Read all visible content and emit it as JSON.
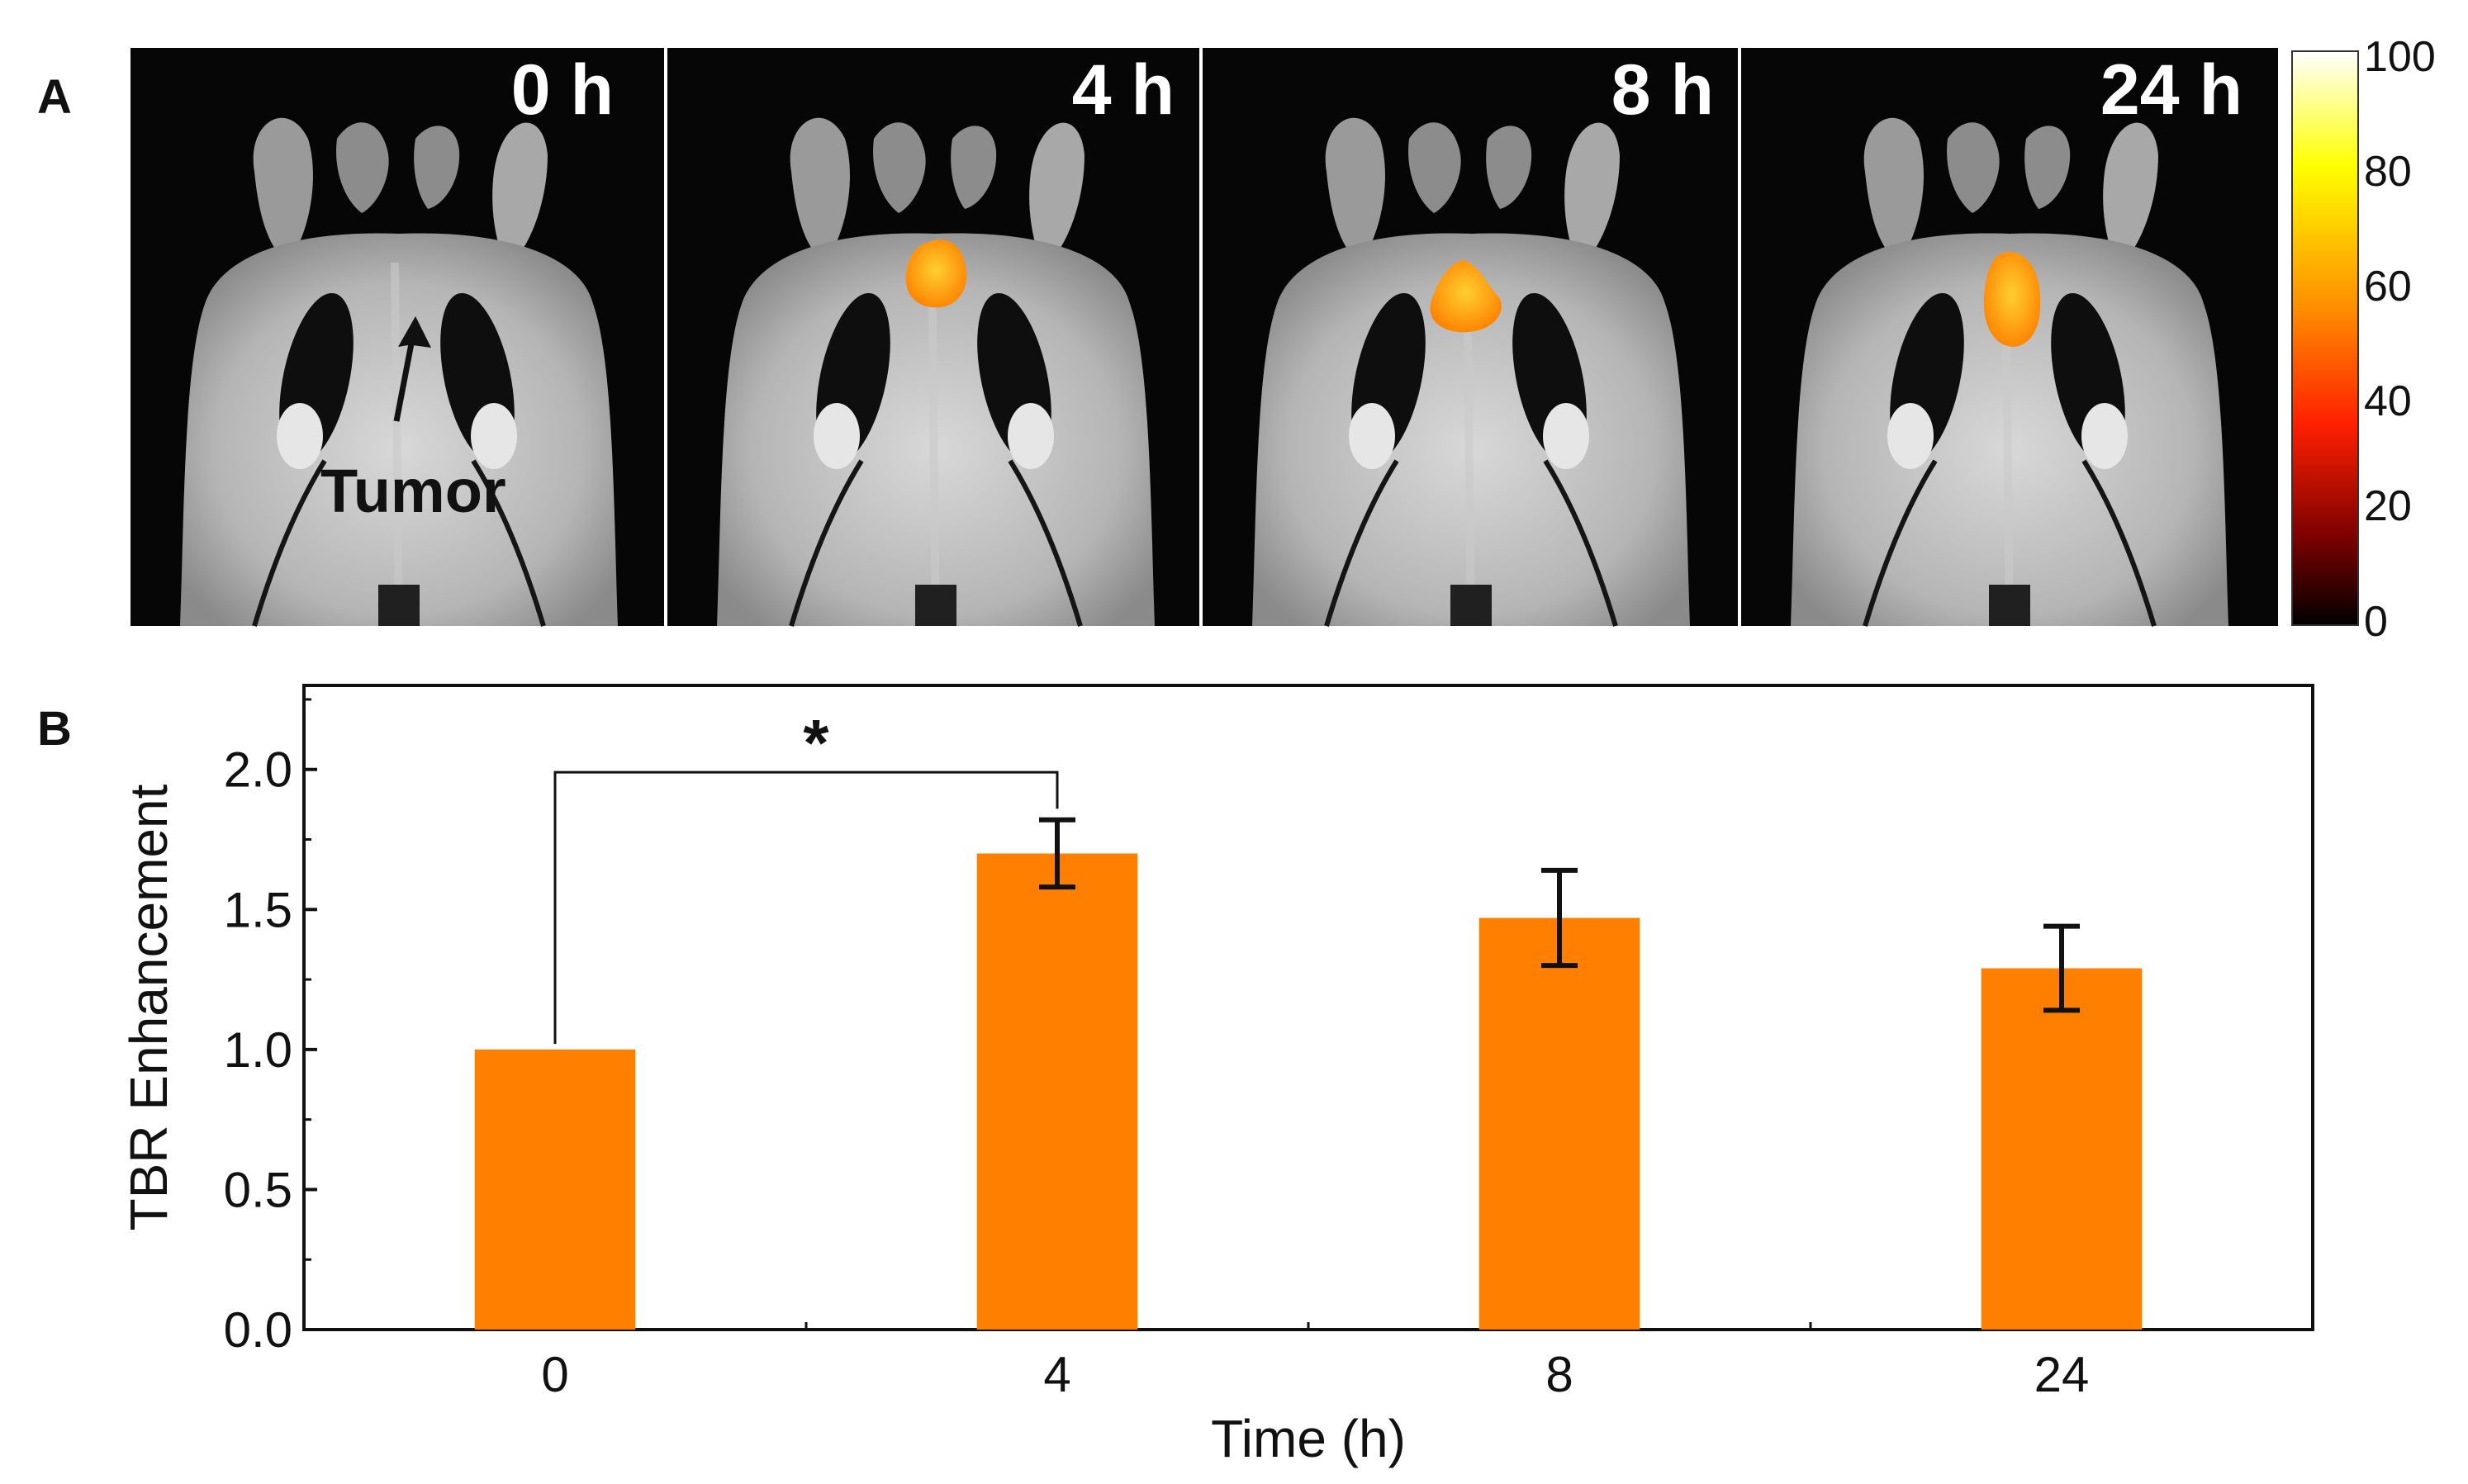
{
  "figure": {
    "panel_a_label": "A",
    "panel_b_label": "B"
  },
  "panel_a": {
    "timepoints": [
      "0 h",
      "4 h",
      "8 h",
      "24 h"
    ],
    "tumor_annotation": "Tumor",
    "colorbar": {
      "ticks": [
        "100",
        "80",
        "60",
        "40",
        "20",
        "0"
      ],
      "colors": [
        "#ffffff",
        "#ffff00",
        "#ff8c00",
        "#ff2000",
        "#7a0000",
        "#000000"
      ]
    },
    "signal_color": "#ff9a00"
  },
  "chart_data": {
    "type": "bar",
    "categories": [
      "0",
      "4",
      "8",
      "24"
    ],
    "values": [
      1.0,
      1.7,
      1.47,
      1.29
    ],
    "errors": [
      0.0,
      0.12,
      0.17,
      0.15
    ],
    "xlabel": "Time (h)",
    "ylabel": "TBR Enhancement",
    "ylim": [
      0.0,
      2.3
    ],
    "yticks": [
      "0.0",
      "0.5",
      "1.0",
      "1.5",
      "2.0"
    ],
    "bar_color": "#ff8000",
    "significance": {
      "from": "0",
      "to": "4",
      "label": "*"
    }
  }
}
